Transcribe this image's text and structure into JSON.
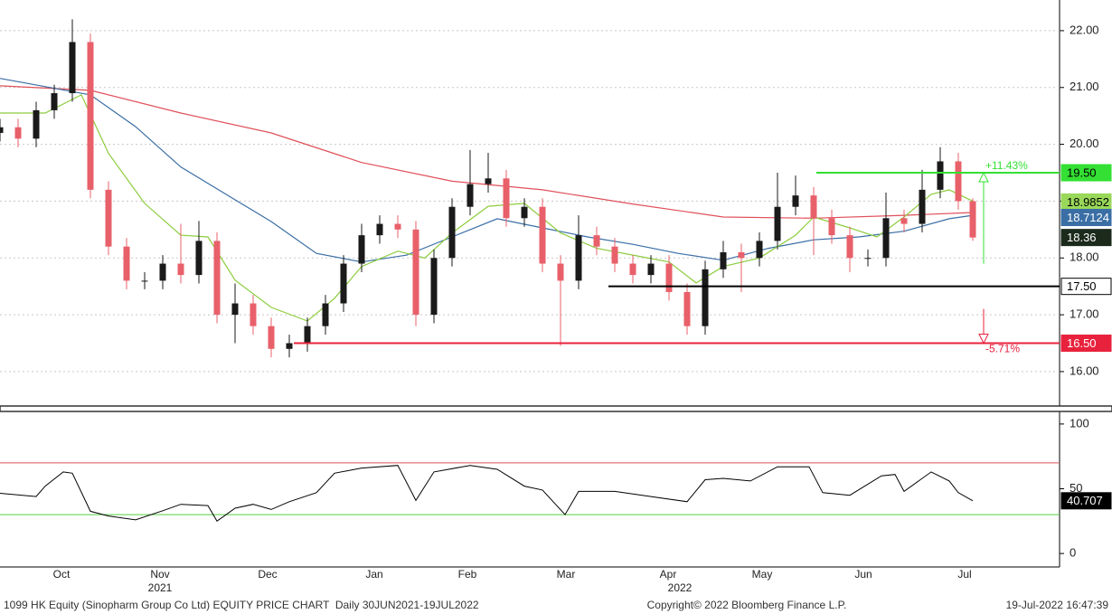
{
  "chart_data": [
    {
      "type": "candlestick",
      "xlim": [
        0,
        234.4
      ],
      "ylim": [
        15.41,
        22.54
      ],
      "yticks": [
        {
          "value": 16,
          "label": "16.00"
        },
        {
          "value": 17,
          "label": "17.00"
        },
        {
          "value": 18,
          "label": "18.00"
        },
        {
          "value": 19,
          "label": "19.00"
        },
        {
          "value": 20,
          "label": "20.00"
        },
        {
          "value": 21,
          "label": "21.00"
        },
        {
          "value": 22,
          "label": "22.00"
        }
      ],
      "grid": true,
      "up_color": "#1a1a1a",
      "down_color": "#e8606a",
      "x": [
        0,
        4,
        8,
        12,
        16,
        20,
        24,
        28,
        32,
        36,
        40,
        44,
        48,
        52,
        56,
        60,
        64,
        68,
        72,
        76,
        80,
        84,
        88,
        92,
        96,
        100,
        104,
        108,
        112,
        116,
        120,
        124,
        128,
        132,
        136,
        140,
        144,
        148,
        152,
        156,
        160,
        164,
        168,
        172,
        176,
        180,
        184,
        188,
        192,
        196,
        200,
        204,
        208,
        212,
        215.2
      ],
      "open": [
        20.2,
        20.3,
        20.1,
        20.6,
        20.9,
        21.8,
        19.2,
        18.2,
        17.6,
        17.6,
        17.9,
        17.7,
        18.3,
        17.0,
        17.2,
        16.8,
        16.4,
        16.5,
        16.8,
        17.2,
        17.9,
        18.4,
        18.6,
        18.5,
        17.0,
        18.0,
        18.9,
        19.3,
        19.4,
        18.7,
        18.9,
        17.9,
        17.6,
        18.4,
        18.2,
        17.9,
        17.7,
        17.9,
        17.4,
        16.8,
        17.8,
        18.1,
        18.0,
        18.3,
        18.9,
        19.1,
        18.7,
        18.4,
        18.0,
        18.0,
        18.7,
        18.6,
        19.2,
        19.7,
        19.0
      ],
      "high": [
        20.45,
        20.45,
        20.75,
        21.05,
        22.2,
        21.95,
        19.35,
        18.35,
        17.75,
        18.05,
        18.6,
        18.65,
        18.45,
        17.55,
        17.35,
        16.95,
        16.65,
        16.95,
        17.35,
        18.05,
        18.6,
        18.75,
        18.75,
        18.65,
        18.15,
        19.05,
        19.9,
        19.85,
        19.55,
        19.05,
        19.05,
        18.05,
        18.75,
        18.55,
        18.35,
        18.05,
        18.05,
        18.05,
        17.55,
        17.95,
        18.3,
        18.25,
        18.45,
        19.5,
        19.45,
        19.25,
        18.85,
        18.55,
        18.15,
        19.15,
        18.85,
        19.55,
        19.95,
        19.85,
        19.05
      ],
      "low": [
        20.05,
        19.95,
        19.95,
        20.45,
        20.75,
        19.05,
        18.05,
        17.45,
        17.45,
        17.45,
        17.55,
        17.55,
        16.85,
        16.5,
        16.65,
        16.25,
        16.25,
        16.35,
        16.65,
        17.05,
        17.75,
        18.25,
        18.35,
        16.8,
        16.85,
        17.85,
        18.75,
        19.15,
        18.55,
        18.55,
        17.75,
        16.45,
        17.45,
        18.05,
        17.75,
        17.55,
        17.55,
        17.25,
        16.65,
        16.65,
        17.65,
        17.4,
        17.85,
        18.15,
        18.75,
        18.05,
        18.25,
        17.75,
        17.85,
        17.85,
        18.45,
        18.45,
        19.05,
        18.85,
        18.3
      ],
      "close": [
        20.3,
        20.1,
        20.6,
        20.9,
        21.8,
        19.2,
        18.2,
        17.6,
        17.6,
        17.9,
        17.7,
        18.3,
        17.0,
        17.2,
        16.8,
        16.4,
        16.5,
        16.8,
        17.2,
        17.9,
        18.4,
        18.6,
        18.5,
        17.0,
        18.0,
        18.9,
        19.3,
        19.4,
        18.7,
        18.9,
        17.9,
        17.6,
        18.4,
        18.2,
        17.9,
        17.7,
        17.9,
        17.4,
        16.8,
        17.8,
        18.1,
        18.0,
        18.3,
        18.9,
        19.1,
        18.7,
        18.4,
        18.0,
        18.0,
        18.7,
        18.6,
        19.2,
        19.7,
        19.0,
        18.36
      ],
      "lines": [
        {
          "color": "#e0505a",
          "x": [
            0,
            20,
            40,
            60,
            80,
            100,
            120,
            140,
            160,
            180,
            200,
            215.2
          ],
          "values": [
            21.03,
            20.95,
            20.55,
            20.2,
            19.68,
            19.35,
            19.2,
            18.95,
            18.72,
            18.7,
            18.75,
            18.8
          ]
        },
        {
          "color": "#3a6ea5",
          "x": [
            0,
            20,
            30,
            40,
            50,
            60,
            70,
            80,
            90,
            100,
            110,
            120,
            130,
            140,
            150,
            160,
            170,
            180,
            190,
            200,
            210,
            215.2
          ],
          "values": [
            21.16,
            20.87,
            20.31,
            19.6,
            19.12,
            18.64,
            18.08,
            17.93,
            18.05,
            18.37,
            18.69,
            18.53,
            18.37,
            18.24,
            18.08,
            17.96,
            18.17,
            18.32,
            18.37,
            18.47,
            18.69,
            18.75
          ]
        },
        {
          "color": "#8ccc3c",
          "x": [
            0,
            10,
            18,
            24,
            32,
            40,
            46,
            52,
            60,
            68,
            74,
            80,
            88,
            94,
            100,
            108,
            116,
            124,
            132,
            140,
            148,
            154,
            160,
            168,
            176,
            180,
            188,
            194,
            200,
            206,
            210,
            215.2
          ],
          "values": [
            20.55,
            20.55,
            20.87,
            19.84,
            18.96,
            18.4,
            18.37,
            17.61,
            17.13,
            16.89,
            17.29,
            17.85,
            18.12,
            18.0,
            18.44,
            18.91,
            18.96,
            18.44,
            18.17,
            18.05,
            17.93,
            17.56,
            17.85,
            18.0,
            18.4,
            18.72,
            18.53,
            18.37,
            18.72,
            19.12,
            19.2,
            19.0
          ]
        }
      ],
      "last_labels": [
        {
          "value": 18.9852,
          "color": "#9ad85a",
          "text_color": "#000000"
        },
        {
          "value": 18.7124,
          "color": "#3a6ea5",
          "text_color": "#ffffff"
        },
        {
          "value": 18.36,
          "color": "#1c2a1c",
          "text_color": "#ffffff"
        }
      ],
      "levels": [
        {
          "value": 19.5,
          "label": "19.50",
          "color": "#33e033",
          "text_color": "#000000",
          "start": 180.6,
          "annotation": "+11.43%"
        },
        {
          "value": 17.5,
          "label": "17.50",
          "color": "#000000",
          "text_color": "#000000",
          "start": 134.6
        },
        {
          "value": 16.5,
          "label": "16.50",
          "color": "#e8223c",
          "text_color": "#ffffff",
          "start": 65,
          "annotation": "-5.71%"
        }
      ],
      "xticks": [
        {
          "value": 13.6,
          "label": "Oct"
        },
        {
          "value": 35.4,
          "label": "Nov"
        },
        {
          "value": 59.2,
          "label": "Dec"
        },
        {
          "value": 82.8,
          "label": "Jan"
        },
        {
          "value": 103.4,
          "label": "Feb"
        },
        {
          "value": 125.2,
          "label": "Mar"
        },
        {
          "value": 147.8,
          "label": "Apr"
        },
        {
          "value": 168.6,
          "label": "May"
        },
        {
          "value": 191,
          "label": "Jun"
        },
        {
          "value": 213.4,
          "label": "Jul"
        }
      ],
      "year_labels": [
        {
          "value": 35.4,
          "label": "2021"
        },
        {
          "value": 150.4,
          "label": "2022"
        }
      ]
    },
    {
      "type": "line",
      "xlim": [
        0,
        234.4
      ],
      "ylim": [
        -10.4,
        109
      ],
      "yticks": [
        0,
        50,
        100
      ],
      "color": "#000000",
      "x": [
        0,
        8,
        10,
        14,
        16,
        20,
        24,
        30,
        36,
        40,
        46,
        48,
        52,
        56,
        60,
        64,
        70,
        74,
        80,
        88,
        92,
        96,
        104,
        110,
        116,
        120,
        125,
        128,
        136,
        144,
        152,
        156,
        160,
        166,
        172,
        179,
        182,
        188,
        195,
        198,
        200,
        206,
        210,
        212,
        215.2
      ],
      "values": [
        46.5,
        44,
        52,
        63,
        62,
        32.6,
        29,
        26,
        33,
        38,
        37,
        25,
        35,
        38,
        34,
        40,
        47,
        62,
        66,
        68,
        41,
        63,
        68,
        65,
        52,
        49,
        30,
        48,
        48,
        44,
        40,
        57,
        58,
        56,
        67,
        67,
        47,
        45,
        60,
        61,
        48,
        63,
        56,
        47,
        40.707
      ],
      "hlines": [
        {
          "value": 70,
          "color": "#e0505a"
        },
        {
          "value": 30,
          "color": "#55cc44"
        }
      ],
      "last_label": {
        "value": 40.707,
        "color": "#000000",
        "text_color": "#ffffff"
      }
    }
  ],
  "footer": {
    "left": "1099 HK Equity (Sinopharm Group Co Ltd) EQUITY PRICE CHART  Daily 30JUN2021-19JUL2022",
    "center": "Copyright© 2022 Bloomberg Finance L.P.",
    "right": "19-Jul-2022 16:47:39"
  }
}
